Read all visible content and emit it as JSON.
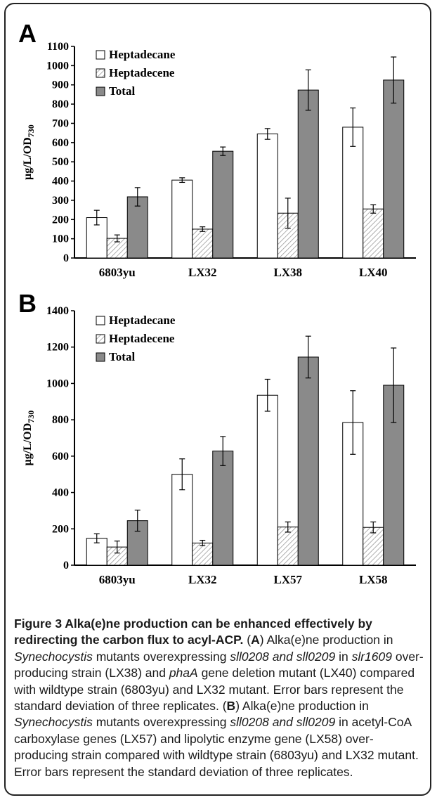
{
  "panels": [
    {
      "letter": "A"
    },
    {
      "letter": "B"
    }
  ],
  "chart_data": [
    {
      "type": "bar",
      "ylabel": "μg/L/OD730",
      "ylim": [
        0,
        1100
      ],
      "yticks": [
        0,
        100,
        200,
        300,
        400,
        500,
        600,
        700,
        800,
        900,
        1000,
        1100
      ],
      "categories": [
        "6803yu",
        "LX32",
        "LX38",
        "LX40"
      ],
      "legend_position": "top-left",
      "series": [
        {
          "name": "Heptadecane",
          "color": "#ffffff",
          "values": [
            210,
            405,
            645,
            680
          ],
          "errors": [
            38,
            12,
            28,
            100
          ]
        },
        {
          "name": "Heptadecene",
          "color": "hatch",
          "values": [
            102,
            150,
            233,
            255
          ],
          "errors": [
            18,
            12,
            78,
            22
          ]
        },
        {
          "name": "Total",
          "color": "#8a8a8a",
          "values": [
            318,
            555,
            873,
            925
          ],
          "errors": [
            48,
            22,
            105,
            120
          ]
        }
      ]
    },
    {
      "type": "bar",
      "ylabel": "μg/L/OD730",
      "ylim": [
        0,
        1400
      ],
      "yticks": [
        0,
        200,
        400,
        600,
        800,
        1000,
        1200,
        1400
      ],
      "categories": [
        "6803yu",
        "LX32",
        "LX57",
        "LX58"
      ],
      "legend_position": "top-left",
      "series": [
        {
          "name": "Heptadecane",
          "color": "#ffffff",
          "values": [
            148,
            500,
            935,
            785
          ],
          "errors": [
            25,
            85,
            88,
            175
          ]
        },
        {
          "name": "Heptadecene",
          "color": "hatch",
          "values": [
            100,
            122,
            210,
            208
          ],
          "errors": [
            33,
            15,
            28,
            30
          ]
        },
        {
          "name": "Total",
          "color": "#8a8a8a",
          "values": [
            245,
            628,
            1145,
            990
          ],
          "errors": [
            58,
            80,
            115,
            205
          ]
        }
      ]
    }
  ],
  "caption": {
    "title": "Figure 3 Alka(e)ne production can be enhanced effectively by redirecting the carbon flux to acyl-ACP.",
    "segments": [
      {
        "t": " ("
      },
      {
        "t": "A",
        "s": "b"
      },
      {
        "t": ") Alka(e)ne production in "
      },
      {
        "t": "Synechocystis",
        "s": "i"
      },
      {
        "t": " mutants overexpressing "
      },
      {
        "t": "sll0208 and sll0209",
        "s": "i"
      },
      {
        "t": " in "
      },
      {
        "t": "slr1609",
        "s": "i"
      },
      {
        "t": " over-producing strain (LX38) and "
      },
      {
        "t": "phaA",
        "s": "i"
      },
      {
        "t": " gene deletion mutant (LX40) compared with wildtype strain (6803yu) and LX32 mutant. Error bars represent the standard deviation of three replicates. ("
      },
      {
        "t": "B",
        "s": "b"
      },
      {
        "t": ") Alka(e)ne production in "
      },
      {
        "t": "Synechocystis",
        "s": "i"
      },
      {
        "t": " mutants overexpressing "
      },
      {
        "t": "sll0208 and sll0209",
        "s": "i"
      },
      {
        "t": " in acetyl-CoA carboxylase genes (LX57) and lipolytic enzyme gene (LX58) over-producing strain compared with wildtype strain (6803yu) and LX32 mutant. Error bars represent the standard deviation of three replicates."
      }
    ]
  }
}
